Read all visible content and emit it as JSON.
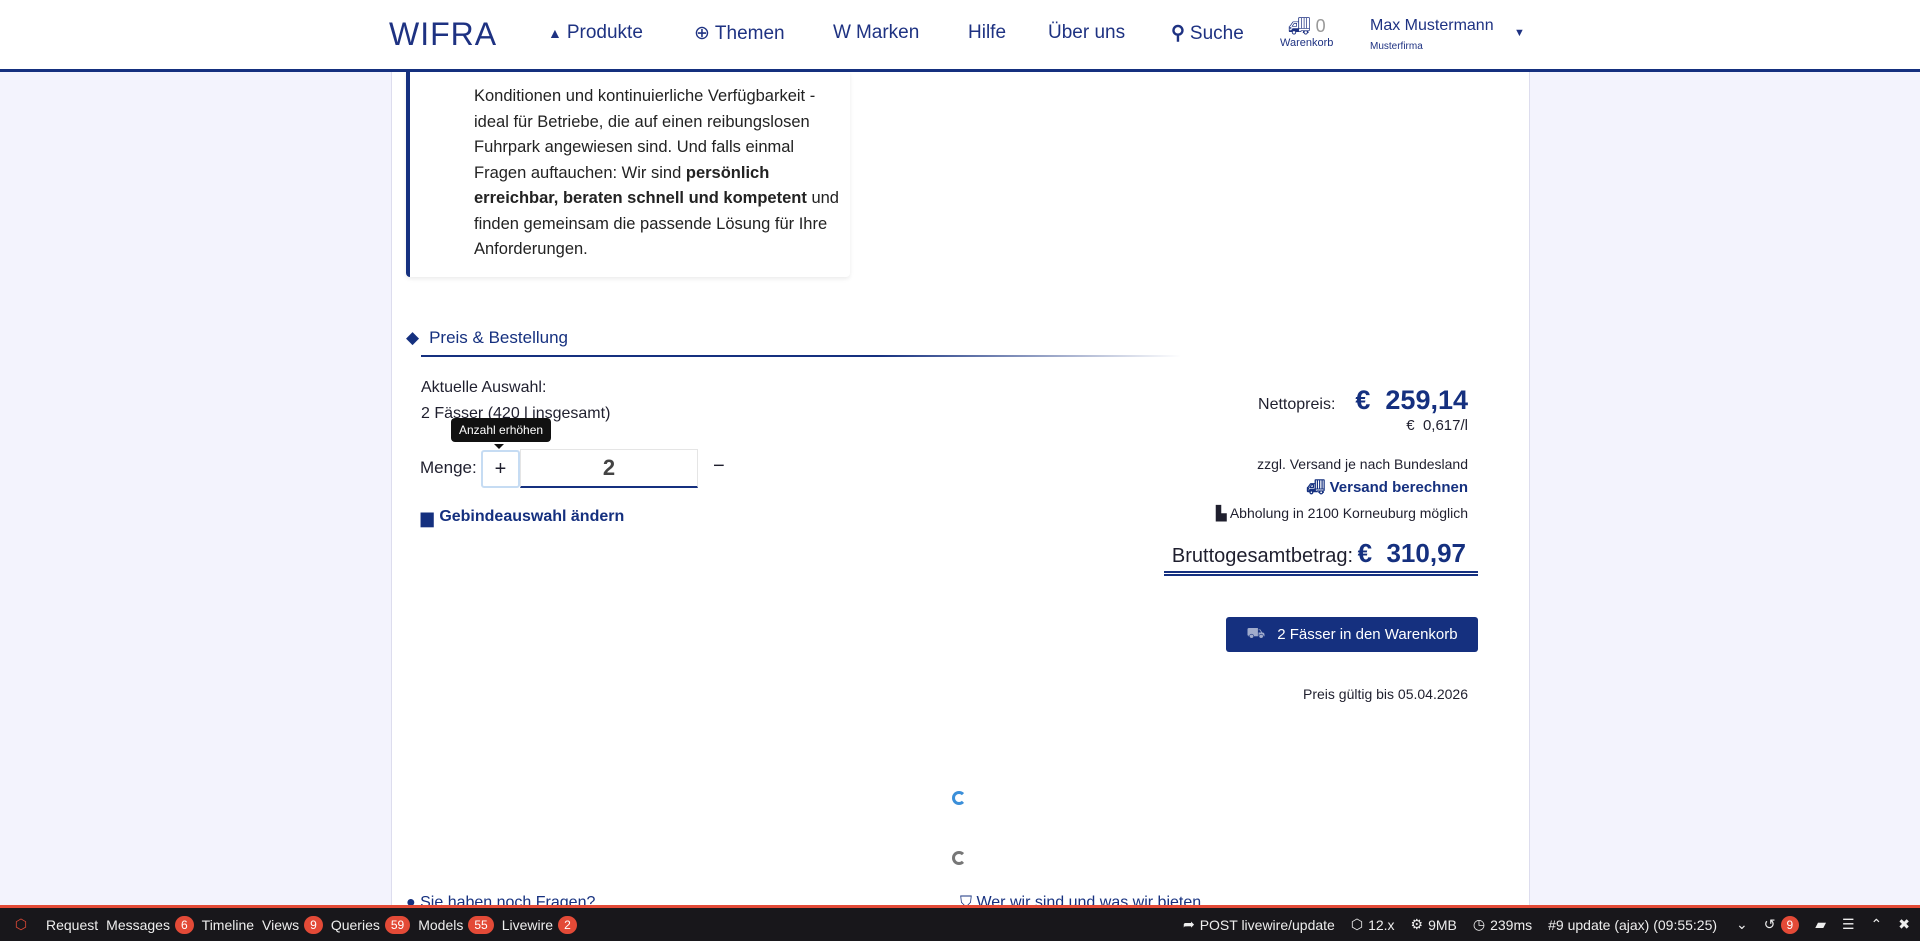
{
  "header": {
    "logo": "WIFRA",
    "nav": [
      "Produkte",
      "Themen",
      "Marken",
      "Hilfe",
      "Über uns",
      "Suche"
    ],
    "cart_count": "0",
    "cart_label": "Warenkorb",
    "user_name": "Max Mustermann",
    "user_company": "Musterfirma"
  },
  "info": {
    "t1": "Konditionen und kontinuierliche Verfügbarkeit - ideal für Betriebe, die auf einen reibungslosen Fuhrpark angewiesen sind. Und falls einmal Fragen auftauchen: Wir sind ",
    "bold": "persönlich erreichbar, beraten schnell und kompetent",
    "t2": " und finden gemeinsam die passende Lösung für Ihre Anforderungen."
  },
  "order": {
    "section_title": "Preis & Bestellung",
    "selection_label": "Aktuelle Auswahl:",
    "selection_value": "2 Fässer (420 l insgesamt)",
    "tooltip": "Anzahl erhöhen",
    "qty_label": "Menge:",
    "plus": "+",
    "minus": "−",
    "qty_value": "2",
    "change_link": "Gebindeauswahl ändern"
  },
  "price": {
    "net_label": "Nettopreis:",
    "net_value": "€  259,14",
    "per_liter": "€  0,617/l",
    "shipping_note": "zzgl. Versand je nach Bundesland",
    "shipping_link": "Versand berechnen",
    "pickup": "Abholung in 2100 Korneuburg möglich",
    "gross_label": "Bruttogesamtbetrag:",
    "gross_value": "€  310,97",
    "cart_button": "2 Fässer in den Warenkorb",
    "valid": "Preis gültig bis 05.04.2026"
  },
  "footer_links": [
    "Sie haben noch Fragen?",
    "Wer wir sind und was wir bieten"
  ],
  "debugbar": {
    "tabs": [
      {
        "label": "Request"
      },
      {
        "label": "Messages",
        "count": "6"
      },
      {
        "label": "Timeline"
      },
      {
        "label": "Views",
        "count": "9"
      },
      {
        "label": "Queries",
        "count": "59"
      },
      {
        "label": "Models",
        "count": "55"
      },
      {
        "label": "Livewire",
        "count": "2"
      }
    ],
    "request": "POST livewire/update",
    "version": "12.x",
    "memory": "9MB",
    "time": "239ms",
    "update": "#9 update (ajax) (09:55:25)",
    "history_count": "9"
  },
  "colors": {
    "brand": "#15307f",
    "debug_accent": "#e34a37"
  }
}
